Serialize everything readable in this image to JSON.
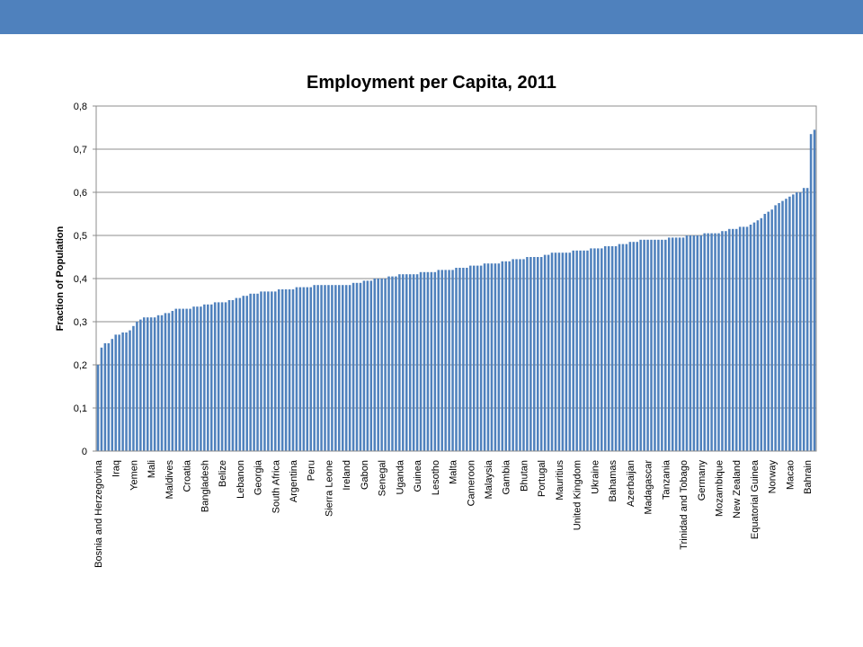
{
  "chart_data": {
    "type": "bar",
    "title": "Employment per Capita, 2011",
    "y_label": "Fraction of Population",
    "color": "#4f81bd",
    "grid": true,
    "ylim": [
      0,
      0.8
    ],
    "yticks": [
      0,
      {
        "value": 0.1,
        "label": "0,1"
      },
      {
        "value": 0.2,
        "label": "0,2"
      },
      {
        "value": 0.3,
        "label": "0,3"
      },
      {
        "value": 0.4,
        "label": "0,4"
      },
      {
        "value": 0.5,
        "label": "0,5"
      },
      {
        "value": 0.6,
        "label": "0,6"
      },
      {
        "value": 0.7,
        "label": "0,7"
      },
      {
        "value": 0.8,
        "label": "0,8"
      }
    ],
    "categories": [
      "Bosnia and Herzegovina",
      null,
      null,
      null,
      null,
      "Iraq",
      null,
      null,
      null,
      null,
      "Yemen",
      null,
      null,
      null,
      null,
      "Mali",
      null,
      null,
      null,
      null,
      "Maldives",
      null,
      null,
      null,
      null,
      "Croatia",
      null,
      null,
      null,
      null,
      "Bangladesh",
      null,
      null,
      null,
      null,
      "Belize",
      null,
      null,
      null,
      null,
      "Lebanon",
      null,
      null,
      null,
      null,
      "Georgia",
      null,
      null,
      null,
      null,
      "South Africa",
      null,
      null,
      null,
      null,
      "Argentina",
      null,
      null,
      null,
      null,
      "Peru",
      null,
      null,
      null,
      null,
      "Sierra Leone",
      null,
      null,
      null,
      null,
      "Ireland",
      null,
      null,
      null,
      null,
      "Gabon",
      null,
      null,
      null,
      null,
      "Senegal",
      null,
      null,
      null,
      null,
      "Uganda",
      null,
      null,
      null,
      null,
      "Guinea",
      null,
      null,
      null,
      null,
      "Lesotho",
      null,
      null,
      null,
      null,
      "Malta",
      null,
      null,
      null,
      null,
      "Cameroon",
      null,
      null,
      null,
      null,
      "Malaysia",
      null,
      null,
      null,
      null,
      "Gambia",
      null,
      null,
      null,
      null,
      "Bhutan",
      null,
      null,
      null,
      null,
      "Portugal",
      null,
      null,
      null,
      null,
      "Mauritius",
      null,
      null,
      null,
      null,
      "United Kingdom",
      null,
      null,
      null,
      null,
      "Ukraine",
      null,
      null,
      null,
      null,
      "Bahamas",
      null,
      null,
      null,
      null,
      "Azerbaijan",
      null,
      null,
      null,
      null,
      "Madagascar",
      null,
      null,
      null,
      null,
      "Tanzania",
      null,
      null,
      null,
      null,
      "Trinidad and Tobago",
      null,
      null,
      null,
      null,
      "Germany",
      null,
      null,
      null,
      null,
      "Mozambique",
      null,
      null,
      null,
      null,
      "New Zealand",
      null,
      null,
      null,
      null,
      "Equatorial Guinea",
      null,
      null,
      null,
      null,
      "Norway",
      null,
      null,
      null,
      null,
      "Macao",
      null,
      null,
      null,
      null,
      "Bahrain",
      null,
      null
    ],
    "values": [
      0.2,
      0.24,
      0.25,
      0.25,
      0.26,
      0.27,
      0.27,
      0.275,
      0.275,
      0.28,
      0.29,
      0.3,
      0.305,
      0.31,
      0.31,
      0.31,
      0.31,
      0.315,
      0.315,
      0.32,
      0.32,
      0.325,
      0.33,
      0.33,
      0.33,
      0.33,
      0.33,
      0.335,
      0.335,
      0.335,
      0.34,
      0.34,
      0.34,
      0.345,
      0.345,
      0.345,
      0.345,
      0.35,
      0.35,
      0.355,
      0.355,
      0.36,
      0.36,
      0.365,
      0.365,
      0.365,
      0.37,
      0.37,
      0.37,
      0.37,
      0.37,
      0.375,
      0.375,
      0.375,
      0.375,
      0.375,
      0.38,
      0.38,
      0.38,
      0.38,
      0.38,
      0.385,
      0.385,
      0.385,
      0.385,
      0.385,
      0.385,
      0.385,
      0.385,
      0.385,
      0.385,
      0.385,
      0.39,
      0.39,
      0.39,
      0.395,
      0.395,
      0.395,
      0.4,
      0.4,
      0.4,
      0.4,
      0.405,
      0.405,
      0.405,
      0.41,
      0.41,
      0.41,
      0.41,
      0.41,
      0.41,
      0.415,
      0.415,
      0.415,
      0.415,
      0.415,
      0.42,
      0.42,
      0.42,
      0.42,
      0.42,
      0.425,
      0.425,
      0.425,
      0.425,
      0.43,
      0.43,
      0.43,
      0.43,
      0.435,
      0.435,
      0.435,
      0.435,
      0.435,
      0.44,
      0.44,
      0.44,
      0.445,
      0.445,
      0.445,
      0.445,
      0.45,
      0.45,
      0.45,
      0.45,
      0.45,
      0.455,
      0.455,
      0.46,
      0.46,
      0.46,
      0.46,
      0.46,
      0.46,
      0.465,
      0.465,
      0.465,
      0.465,
      0.465,
      0.47,
      0.47,
      0.47,
      0.47,
      0.475,
      0.475,
      0.475,
      0.475,
      0.48,
      0.48,
      0.48,
      0.485,
      0.485,
      0.485,
      0.49,
      0.49,
      0.49,
      0.49,
      0.49,
      0.49,
      0.49,
      0.49,
      0.495,
      0.495,
      0.495,
      0.495,
      0.495,
      0.5,
      0.5,
      0.5,
      0.5,
      0.5,
      0.505,
      0.505,
      0.505,
      0.505,
      0.505,
      0.51,
      0.51,
      0.515,
      0.515,
      0.515,
      0.52,
      0.52,
      0.52,
      0.525,
      0.53,
      0.535,
      0.54,
      0.55,
      0.555,
      0.56,
      0.57,
      0.575,
      0.58,
      0.585,
      0.59,
      0.595,
      0.6,
      0.6,
      0.61,
      0.61,
      0.735,
      0.745
    ]
  }
}
